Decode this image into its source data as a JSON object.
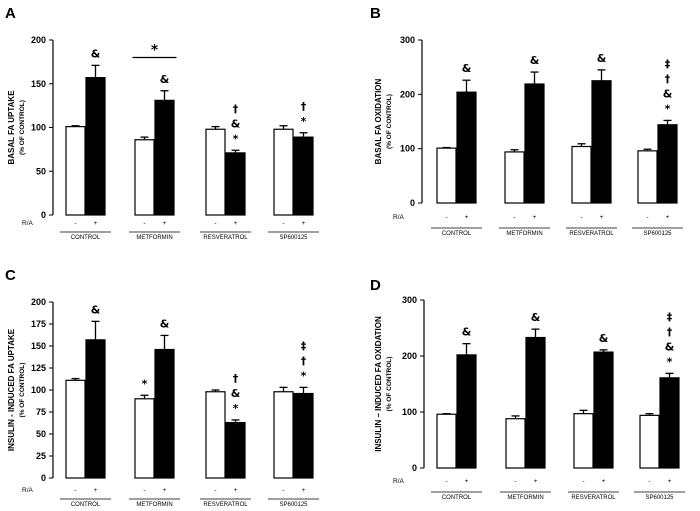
{
  "figure": {
    "ra_label": "R/A",
    "ra_minus": "-",
    "ra_plus": "+"
  },
  "chart_data": [
    {
      "type": "bar",
      "panel": "A",
      "title": "",
      "ylabel": "BASAL FA UPTAKE",
      "ylabel_sub": "(% OF CONTROL)",
      "ylim": [
        0,
        200
      ],
      "yticks": [
        0,
        50,
        100,
        150,
        200
      ],
      "categories": [
        "CONTROL",
        "METFORMIN",
        "RESVERATROL",
        "SP600125"
      ],
      "series": [
        {
          "name": "R/A -",
          "color": "#ffffff",
          "values": [
            101,
            86,
            98,
            98
          ],
          "errors": [
            1,
            3,
            3,
            4
          ]
        },
        {
          "name": "R/A +",
          "color": "#000000",
          "values": [
            157,
            131,
            71,
            89
          ],
          "errors": [
            14,
            11,
            3,
            5
          ]
        }
      ],
      "annotations": [
        {
          "bar": [
            0,
            1
          ],
          "text": "&"
        },
        {
          "bar": [
            1,
            1
          ],
          "text": "&"
        },
        {
          "bar": [
            2,
            1
          ],
          "text": "†\n&\n*"
        },
        {
          "bar": [
            3,
            1
          ],
          "text": "†\n*"
        }
      ],
      "brackets": [
        {
          "from": [
            1,
            0
          ],
          "to": [
            1,
            1
          ],
          "y": 180,
          "text": "*"
        }
      ]
    },
    {
      "type": "bar",
      "panel": "B",
      "title": "",
      "ylabel": "BASAL FA OXIDATION",
      "ylabel_sub": "(% OF CONTROL)",
      "ylim": [
        0,
        300
      ],
      "yticks": [
        0,
        100,
        200,
        300
      ],
      "categories": [
        "CONTROL",
        "METFORMIN",
        "RESVERATROL",
        "SP600125"
      ],
      "series": [
        {
          "name": "R/A -",
          "color": "#ffffff",
          "values": [
            101,
            94,
            104,
            96
          ],
          "errors": [
            1,
            4,
            5,
            3
          ]
        },
        {
          "name": "R/A +",
          "color": "#000000",
          "values": [
            204,
            219,
            225,
            144
          ],
          "errors": [
            22,
            22,
            20,
            8
          ]
        }
      ],
      "annotations": [
        {
          "bar": [
            0,
            1
          ],
          "text": "&"
        },
        {
          "bar": [
            1,
            1
          ],
          "text": "&"
        },
        {
          "bar": [
            2,
            1
          ],
          "text": "&"
        },
        {
          "bar": [
            3,
            1
          ],
          "text": "‡\n†\n&\n*"
        }
      ],
      "brackets": []
    },
    {
      "type": "bar",
      "panel": "C",
      "title": "",
      "ylabel": "INSULIN - INDUCED FA UPTAKE",
      "ylabel_sub": "(% OF CONTROL)",
      "ylim": [
        0,
        200
      ],
      "yticks": [
        0,
        25,
        50,
        75,
        100,
        125,
        150,
        175,
        200
      ],
      "categories": [
        "CONTROL",
        "METFORMIN",
        "RESVERATROL",
        "SP600125"
      ],
      "series": [
        {
          "name": "R/A -",
          "color": "#ffffff",
          "values": [
            111,
            90,
            98,
            98
          ],
          "errors": [
            2,
            4,
            2,
            5
          ]
        },
        {
          "name": "R/A +",
          "color": "#000000",
          "values": [
            157,
            146,
            63,
            96
          ],
          "errors": [
            21,
            16,
            3,
            7
          ]
        }
      ],
      "annotations": [
        {
          "bar": [
            0,
            1
          ],
          "text": "&"
        },
        {
          "bar": [
            1,
            0
          ],
          "text": "*"
        },
        {
          "bar": [
            1,
            1
          ],
          "text": "&"
        },
        {
          "bar": [
            2,
            1
          ],
          "text": "†\n&\n*"
        },
        {
          "bar": [
            3,
            1
          ],
          "text": "‡\n†\n*"
        }
      ],
      "brackets": []
    },
    {
      "type": "bar",
      "panel": "D",
      "title": "",
      "ylabel": "INSULIN – INDUCED FA OXIDATION",
      "ylabel_sub": "(% OF CONTROL)",
      "ylim": [
        0,
        300
      ],
      "yticks": [
        0,
        100,
        200,
        300
      ],
      "categories": [
        "CONTROL",
        "METFORMIN",
        "RESVERATROL",
        "SP600125"
      ],
      "series": [
        {
          "name": "R/A -",
          "color": "#ffffff",
          "values": [
            96,
            88,
            97,
            94
          ],
          "errors": [
            1,
            5,
            6,
            3
          ]
        },
        {
          "name": "R/A +",
          "color": "#000000",
          "values": [
            202,
            233,
            207,
            161
          ],
          "errors": [
            20,
            15,
            4,
            8
          ]
        }
      ],
      "annotations": [
        {
          "bar": [
            0,
            1
          ],
          "text": "&"
        },
        {
          "bar": [
            1,
            1
          ],
          "text": "&"
        },
        {
          "bar": [
            2,
            1
          ],
          "text": "&"
        },
        {
          "bar": [
            3,
            1
          ],
          "text": "‡\n†\n&\n*"
        }
      ],
      "brackets": []
    }
  ]
}
